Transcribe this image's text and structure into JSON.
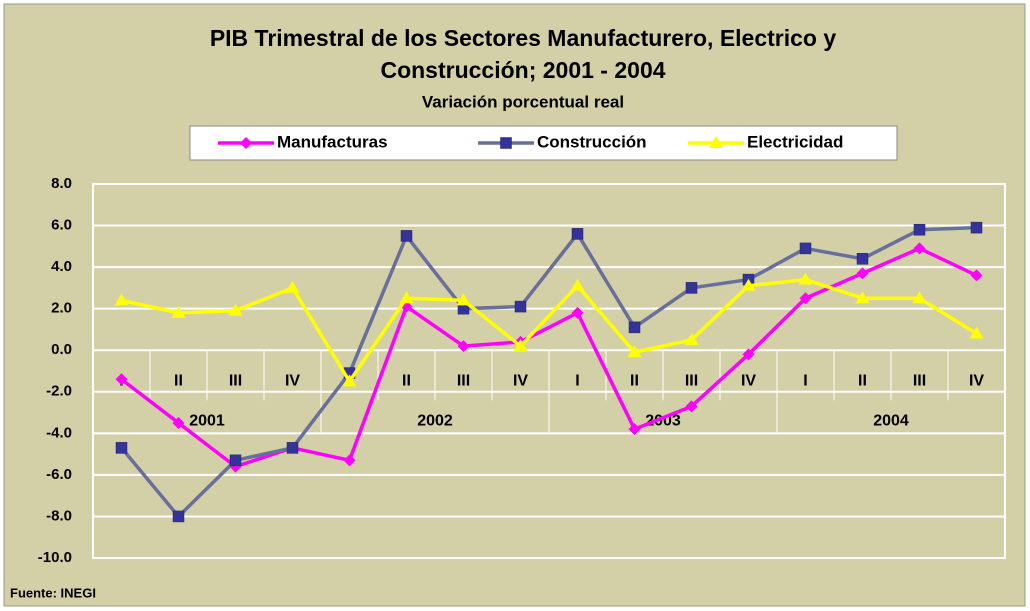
{
  "chart_data": {
    "type": "line",
    "title": [
      "PIB Trimestral de los Sectores Manufacturero, Electrico y",
      "Construcción; 2001 - 2004"
    ],
    "subtitle": "Variación porcentual real",
    "source": "Fuente: INEGI",
    "categories": [
      "I",
      "II",
      "III",
      "IV",
      "I",
      "II",
      "III",
      "IV",
      "I",
      "II",
      "III",
      "IV",
      "I",
      "II",
      "III",
      "IV"
    ],
    "years": [
      "2001",
      "2002",
      "2003",
      "2004"
    ],
    "series": [
      {
        "name": "Manufacturas",
        "color": "#ff00ff",
        "marker": "diamond",
        "marker_color": "#ff00ff",
        "values": [
          -1.4,
          -3.5,
          -5.6,
          -4.7,
          -5.3,
          2.1,
          0.2,
          0.4,
          1.8,
          -3.8,
          -2.7,
          -0.2,
          2.5,
          3.7,
          4.9,
          3.6
        ]
      },
      {
        "name": "Construcción",
        "color": "#66709a",
        "marker": "square",
        "marker_color": "#333399",
        "values": [
          -4.7,
          -8.0,
          -5.3,
          -4.7,
          -1.1,
          5.5,
          2.0,
          2.1,
          5.6,
          1.1,
          3.0,
          3.4,
          4.9,
          4.4,
          5.8,
          5.9
        ]
      },
      {
        "name": "Electricidad",
        "color": "#ffff00",
        "marker": "triangle",
        "marker_color": "#ffff00",
        "values": [
          2.4,
          1.8,
          1.9,
          3.0,
          -1.5,
          2.5,
          2.4,
          0.2,
          3.1,
          -0.1,
          0.5,
          3.1,
          3.4,
          2.5,
          2.5,
          0.8
        ]
      }
    ],
    "ylim": [
      -10,
      8
    ],
    "yticks": [
      {
        "value": 8,
        "label": "8.0"
      },
      {
        "value": 6,
        "label": "6.0"
      },
      {
        "value": 4,
        "label": "4.0"
      },
      {
        "value": 2,
        "label": "2.0"
      },
      {
        "value": 0,
        "label": "0.0"
      },
      {
        "value": -2,
        "label": "-2.0"
      },
      {
        "value": -4,
        "label": "-4.0"
      },
      {
        "value": -6,
        "label": "-6.0"
      },
      {
        "value": -8,
        "label": "-8.0"
      },
      {
        "value": -10,
        "label": "-10.0"
      }
    ],
    "grid": true
  }
}
